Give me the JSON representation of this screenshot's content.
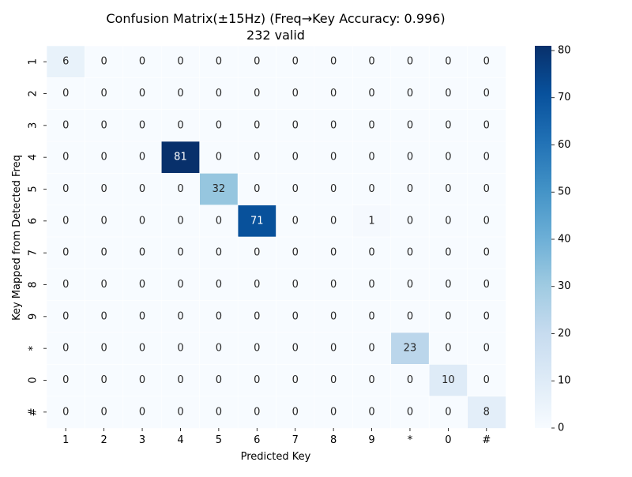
{
  "chart_data": {
    "type": "heatmap",
    "title": "Confusion Matrix(±15Hz) (Freq→Key Accuracy: 0.996)",
    "subtitle": "232 valid",
    "xlabel": "Predicted Key",
    "ylabel": "Key Mapped from Detected Freq",
    "x_categories": [
      "1",
      "2",
      "3",
      "4",
      "5",
      "6",
      "7",
      "8",
      "9",
      "*",
      "0",
      "#"
    ],
    "y_categories": [
      "1",
      "2",
      "3",
      "4",
      "5",
      "6",
      "7",
      "8",
      "9",
      "*",
      "0",
      "#"
    ],
    "values": [
      [
        6,
        0,
        0,
        0,
        0,
        0,
        0,
        0,
        0,
        0,
        0,
        0
      ],
      [
        0,
        0,
        0,
        0,
        0,
        0,
        0,
        0,
        0,
        0,
        0,
        0
      ],
      [
        0,
        0,
        0,
        0,
        0,
        0,
        0,
        0,
        0,
        0,
        0,
        0
      ],
      [
        0,
        0,
        0,
        81,
        0,
        0,
        0,
        0,
        0,
        0,
        0,
        0
      ],
      [
        0,
        0,
        0,
        0,
        32,
        0,
        0,
        0,
        0,
        0,
        0,
        0
      ],
      [
        0,
        0,
        0,
        0,
        0,
        71,
        0,
        0,
        1,
        0,
        0,
        0
      ],
      [
        0,
        0,
        0,
        0,
        0,
        0,
        0,
        0,
        0,
        0,
        0,
        0
      ],
      [
        0,
        0,
        0,
        0,
        0,
        0,
        0,
        0,
        0,
        0,
        0,
        0
      ],
      [
        0,
        0,
        0,
        0,
        0,
        0,
        0,
        0,
        0,
        0,
        0,
        0
      ],
      [
        0,
        0,
        0,
        0,
        0,
        0,
        0,
        0,
        0,
        23,
        0,
        0
      ],
      [
        0,
        0,
        0,
        0,
        0,
        0,
        0,
        0,
        0,
        0,
        10,
        0
      ],
      [
        0,
        0,
        0,
        0,
        0,
        0,
        0,
        0,
        0,
        0,
        0,
        8
      ]
    ],
    "colormap": "Blues",
    "colorbar": {
      "min": 0,
      "max": 81,
      "ticks": [
        0,
        10,
        20,
        30,
        40,
        50,
        60,
        70,
        80
      ]
    },
    "annotate_cells": true,
    "grid": false
  }
}
